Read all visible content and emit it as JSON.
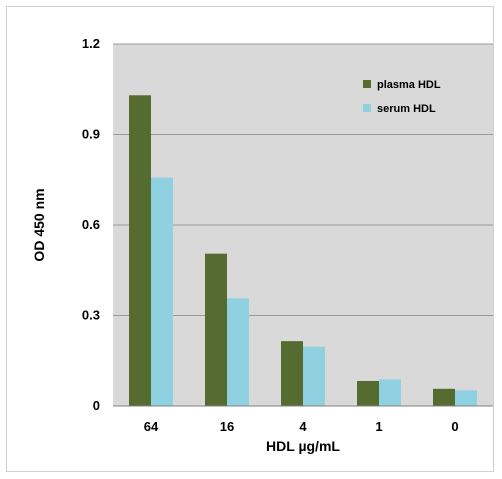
{
  "chart_data": {
    "type": "bar",
    "categories": [
      "64",
      "16",
      "4",
      "1",
      "0"
    ],
    "series": [
      {
        "name": "plasma HDL",
        "values": [
          1.03,
          0.505,
          0.215,
          0.083,
          0.057
        ],
        "color": "#556b2f"
      },
      {
        "name": "serum HDL",
        "values": [
          0.757,
          0.357,
          0.197,
          0.088,
          0.052
        ],
        "color": "#8fd1e0"
      }
    ],
    "xlabel": "HDL µg/mL",
    "ylabel": "OD 450 nm",
    "ylim": [
      0,
      1.2
    ],
    "yticks": [
      "0",
      "0.3",
      "0.6",
      "0.9",
      "1.2"
    ],
    "grid": true,
    "legend_position": "top-right",
    "plot_background": "#d9d9d9"
  }
}
